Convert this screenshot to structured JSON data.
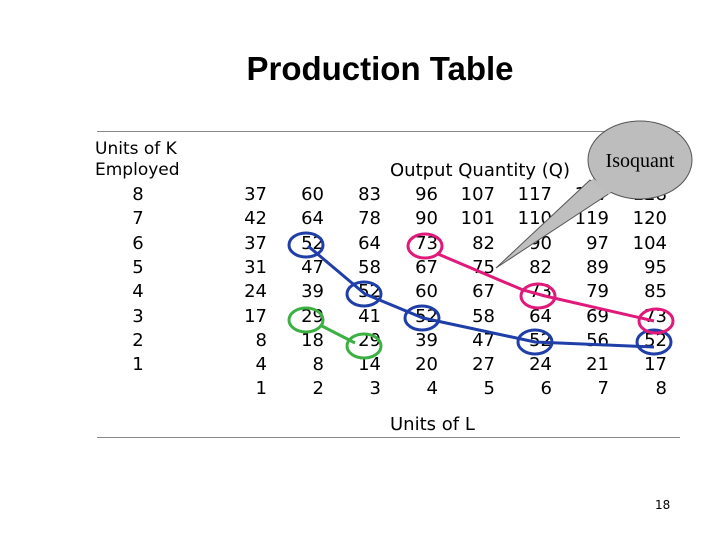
{
  "title": "Production Table",
  "header": {
    "line1": "Units of K",
    "line2": "Employed"
  },
  "output_label": "Output Quantity (Q)",
  "units_l_label": "Units  of L",
  "callout": "Isoquant",
  "page_number": "18",
  "k_values": [
    "8",
    "7",
    "6",
    "5",
    "4",
    "3",
    "2",
    "1"
  ],
  "l_values": [
    "1",
    "2",
    "3",
    "4",
    "5",
    "6",
    "7",
    "8"
  ],
  "rows": [
    [
      "37",
      "60",
      "83",
      "96",
      "107",
      "117",
      "127",
      "128"
    ],
    [
      "42",
      "64",
      "78",
      "90",
      "101",
      "110",
      "119",
      "120"
    ],
    [
      "37",
      "52",
      "64",
      "73",
      "82",
      "90",
      "97",
      "104"
    ],
    [
      "31",
      "47",
      "58",
      "67",
      "75",
      "82",
      "89",
      "95"
    ],
    [
      "24",
      "39",
      "52",
      "60",
      "67",
      "73",
      "79",
      "85"
    ],
    [
      "17",
      "29",
      "41",
      "52",
      "58",
      "64",
      "69",
      "73"
    ],
    [
      "8",
      "18",
      "29",
      "39",
      "47",
      "52",
      "56",
      "52"
    ],
    [
      "4",
      "8",
      "14",
      "20",
      "27",
      "24",
      "21",
      "17"
    ]
  ],
  "colors": {
    "blue": "#1f3ea8",
    "pink": "#e0197a",
    "green": "#3cb043"
  }
}
